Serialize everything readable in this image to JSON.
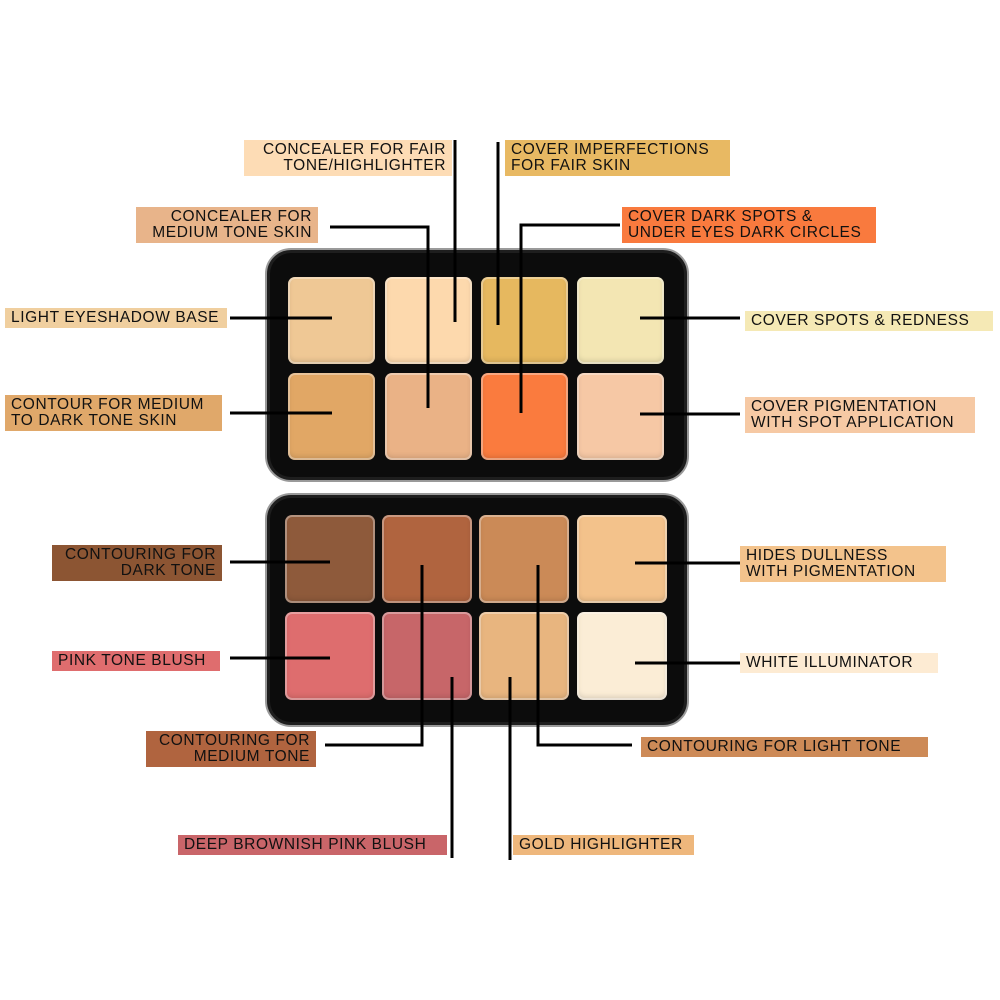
{
  "labels": [
    {
      "id": "concealer-fair",
      "lines": [
        "CONCEALER FOR FAIR",
        "TONE/HIGHLIGHTER"
      ],
      "bg": "#fddcb5"
    },
    {
      "id": "cover-imperfections",
      "lines": [
        "COVER IMPERFECTIONS",
        "FOR FAIR SKIN"
      ],
      "bg": "#e8b963"
    },
    {
      "id": "concealer-medium",
      "lines": [
        "CONCEALER FOR",
        "MEDIUM TONE SKIN"
      ],
      "bg": "#e8b48a"
    },
    {
      "id": "cover-dark-spots",
      "lines": [
        "COVER DARK SPOTS &",
        "UNDER EYES DARK CIRCLES"
      ],
      "bg": "#f97a3e"
    },
    {
      "id": "light-eyeshadow",
      "lines": [
        "LIGHT EYESHADOW BASE"
      ],
      "bg": "#f0cf9f"
    },
    {
      "id": "cover-spots",
      "lines": [
        "COVER SPOTS & REDNESS"
      ],
      "bg": "#f5e9b5"
    },
    {
      "id": "contour-medium-dark",
      "lines": [
        "CONTOUR FOR MEDIUM",
        "TO DARK TONE SKIN"
      ],
      "bg": "#e0a86a"
    },
    {
      "id": "cover-pigmentation",
      "lines": [
        "COVER PIGMENTATION",
        "WITH SPOT APPLICATION"
      ],
      "bg": "#f6c9a4"
    },
    {
      "id": "contouring-dark",
      "lines": [
        "CONTOURING FOR",
        "DARK TONE"
      ],
      "bg": "#8c5533"
    },
    {
      "id": "hides-dullness",
      "lines": [
        "HIDES DULLNESS",
        "WITH PIGMENTATION"
      ],
      "bg": "#f3c38c"
    },
    {
      "id": "pink-blush",
      "lines": [
        "PINK TONE BLUSH"
      ],
      "bg": "#df6d6e"
    },
    {
      "id": "white-illuminator",
      "lines": [
        "WHITE ILLUMINATOR"
      ],
      "bg": "#fdebd3"
    },
    {
      "id": "contouring-medium",
      "lines": [
        "CONTOURING FOR",
        "MEDIUM TONE"
      ],
      "bg": "#b0643f"
    },
    {
      "id": "contouring-light",
      "lines": [
        "CONTOURING FOR LIGHT TONE"
      ],
      "bg": "#cd8a57"
    },
    {
      "id": "deep-pink-blush",
      "lines": [
        "DEEP BROWNISH PINK BLUSH"
      ],
      "bg": "#c96569"
    },
    {
      "id": "gold-highlighter",
      "lines": [
        "GOLD HIGHLIGHTER"
      ],
      "bg": "#eeb77c"
    }
  ],
  "palette": {
    "upper_pans": [
      "#efc895",
      "#fdd9ad",
      "#e6b85f",
      "#f3e6b3",
      "#e1a765",
      "#eab286",
      "#fa7b3e",
      "#f6c8a5"
    ],
    "lower_pans": [
      "#8e5a3b",
      "#b0643f",
      "#cb8a57",
      "#f3c28b",
      "#de6d6e",
      "#c76669",
      "#e8b57f",
      "#fbedd6"
    ]
  }
}
